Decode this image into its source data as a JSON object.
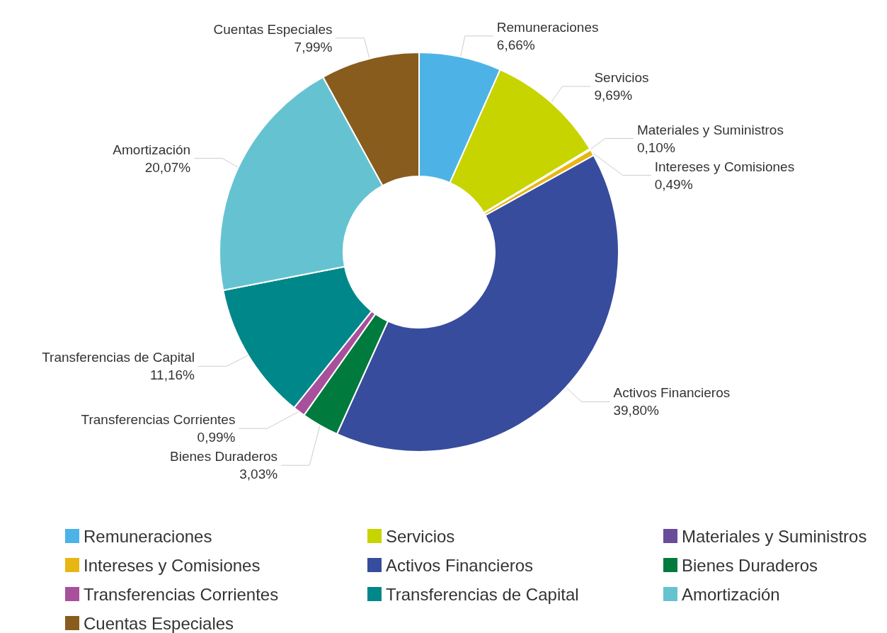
{
  "chart_data": {
    "type": "donut",
    "categories": [
      "Remuneraciones",
      "Servicios",
      "Materiales y Suministros",
      "Intereses y Comisiones",
      "Activos Financieros",
      "Bienes Duraderos",
      "Transferencias Corrientes",
      "Transferencias de Capital",
      "Amortización",
      "Cuentas Especiales"
    ],
    "values": [
      6.66,
      9.69,
      0.1,
      0.49,
      39.8,
      3.03,
      0.99,
      11.16,
      20.07,
      7.99
    ],
    "value_labels": [
      "6,66%",
      "9,69%",
      "0,10%",
      "0,49%",
      "39,80%",
      "3,03%",
      "0,99%",
      "11,16%",
      "20,07%",
      "7,99%"
    ],
    "colors": [
      "#4db3e6",
      "#c8d400",
      "#6b4c9a",
      "#e8b612",
      "#374c9c",
      "#007a3d",
      "#a8509c",
      "#00878a",
      "#65c3d1",
      "#875c1d"
    ],
    "legend": "bottom"
  }
}
